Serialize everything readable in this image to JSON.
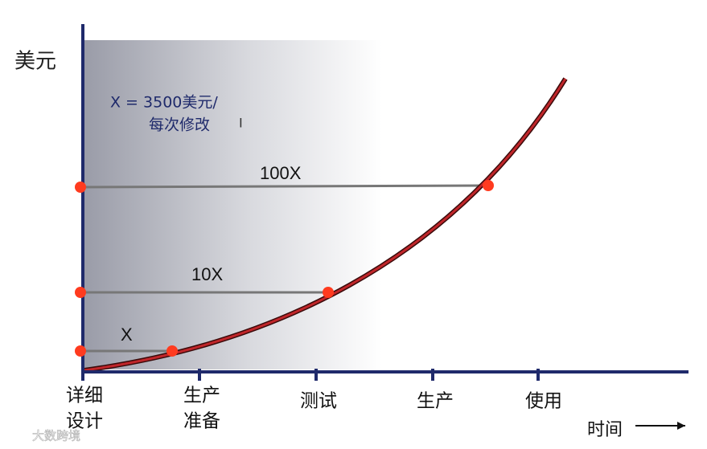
{
  "y_axis_label": "美元",
  "note": [
    "X = 3500美元/",
    "每次修改"
  ],
  "levels": [
    "X",
    "10X",
    "100X"
  ],
  "stages": [
    [
      "详细",
      "设计"
    ],
    [
      "生产",
      "准备"
    ],
    [
      "测试"
    ],
    [
      "生产"
    ],
    [
      "使用"
    ]
  ],
  "x_axis_label": "时间",
  "watermark": "大数跨境"
}
